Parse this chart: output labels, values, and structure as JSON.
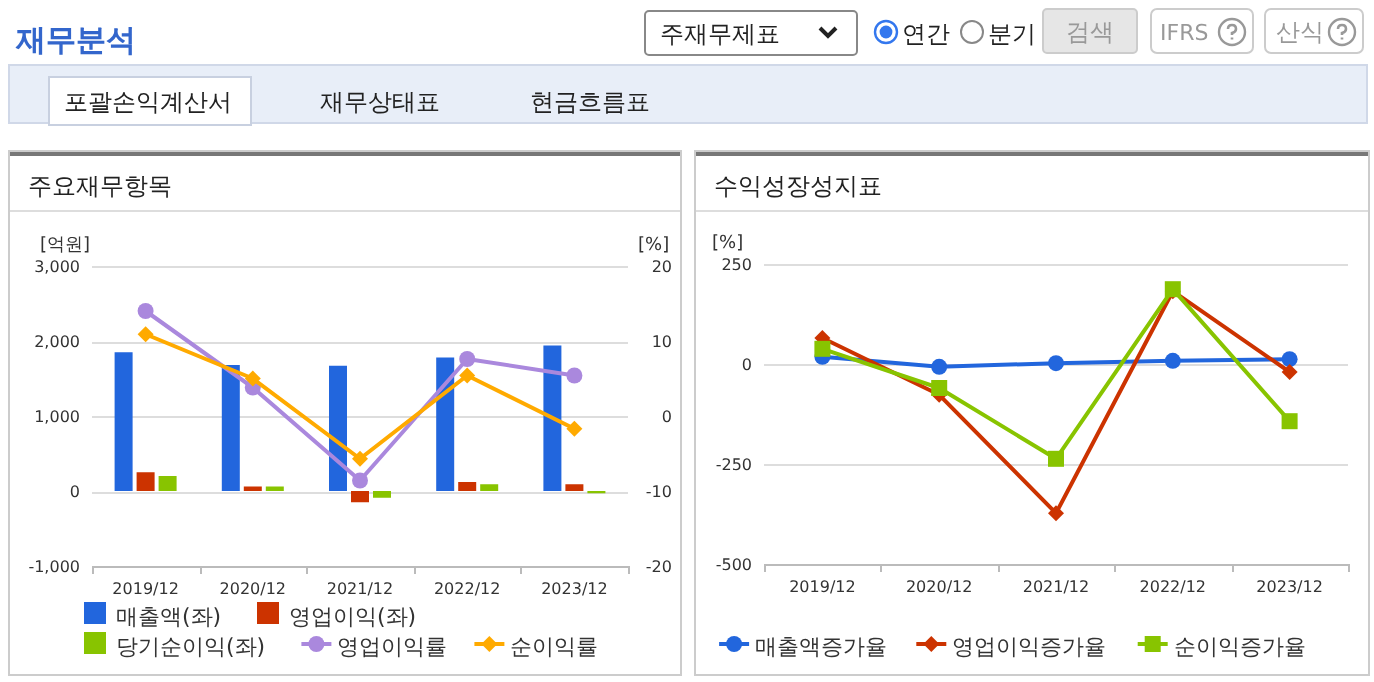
{
  "chart_data": [
    {
      "type": "other",
      "title": "재무분석",
      "annotations": [
        "주재무제표",
        "연간",
        "분기",
        "검색",
        "IFRS",
        "산식",
        "포괄손익계산서",
        "재무상태표",
        "현금흐름표"
      ]
    },
    {
      "type": "bar",
      "title": "주요재무항목",
      "ylabel": "[억원]",
      "y2label": "[%]",
      "categories": [
        "2019/12",
        "2020/12",
        "2021/12",
        "2022/12",
        "2023/12"
      ],
      "series": [
        {
          "name": "매출액(좌)",
          "color": "#2266dd",
          "values": [
            1850,
            1680,
            1670,
            1780,
            1940
          ]
        },
        {
          "name": "영업이익(좌)",
          "color": "#cc3300",
          "values": [
            250,
            60,
            -150,
            120,
            90
          ]
        },
        {
          "name": "당기순이익(좌)",
          "color": "#88c400",
          "values": [
            200,
            60,
            -90,
            90,
            -30
          ]
        },
        {
          "name": "영업이익률",
          "type": "line",
          "axis": "y2",
          "marker": "circle",
          "color": "#aa88dd",
          "values": [
            14.0,
            3.8,
            -8.6,
            7.6,
            5.4
          ]
        },
        {
          "name": "순이익률",
          "type": "line",
          "axis": "y2",
          "marker": "diamond",
          "color": "#ffaa00",
          "values": [
            10.9,
            5.0,
            -5.7,
            5.4,
            -1.7
          ]
        }
      ],
      "ylim": [
        -1000,
        3000
      ],
      "yticks": [
        {
          "value": -1000,
          "label": "-1,000"
        },
        0,
        {
          "value": 1000,
          "label": "1,000"
        },
        {
          "value": 2000,
          "label": "2,000"
        },
        {
          "value": 3000,
          "label": "3,000"
        }
      ],
      "y2lim": [
        -20,
        20
      ],
      "y2ticks": [
        -20,
        -10,
        0,
        10,
        20
      ],
      "grid": "y",
      "legend": "bottom"
    },
    {
      "type": "line",
      "title": "수익성장성지표",
      "ylabel": "[%]",
      "categories": [
        "2019/12",
        "2020/12",
        "2021/12",
        "2022/12",
        "2023/12"
      ],
      "series": [
        {
          "name": "매출액증가율",
          "marker": "circle",
          "color": "#2266dd",
          "values": [
            18,
            -7,
            2,
            8,
            12
          ]
        },
        {
          "name": "영업이익증가율",
          "marker": "diamond",
          "color": "#cc3300",
          "values": [
            65,
            -77,
            -373,
            182,
            -20
          ]
        },
        {
          "name": "순이익증가율",
          "marker": "square",
          "color": "#88c400",
          "values": [
            38,
            -60,
            -237,
            187,
            -143
          ]
        }
      ],
      "ylim": [
        -500,
        250
      ],
      "yticks": [
        -500,
        -250,
        0,
        250
      ],
      "grid": "y",
      "legend": "bottom"
    }
  ]
}
